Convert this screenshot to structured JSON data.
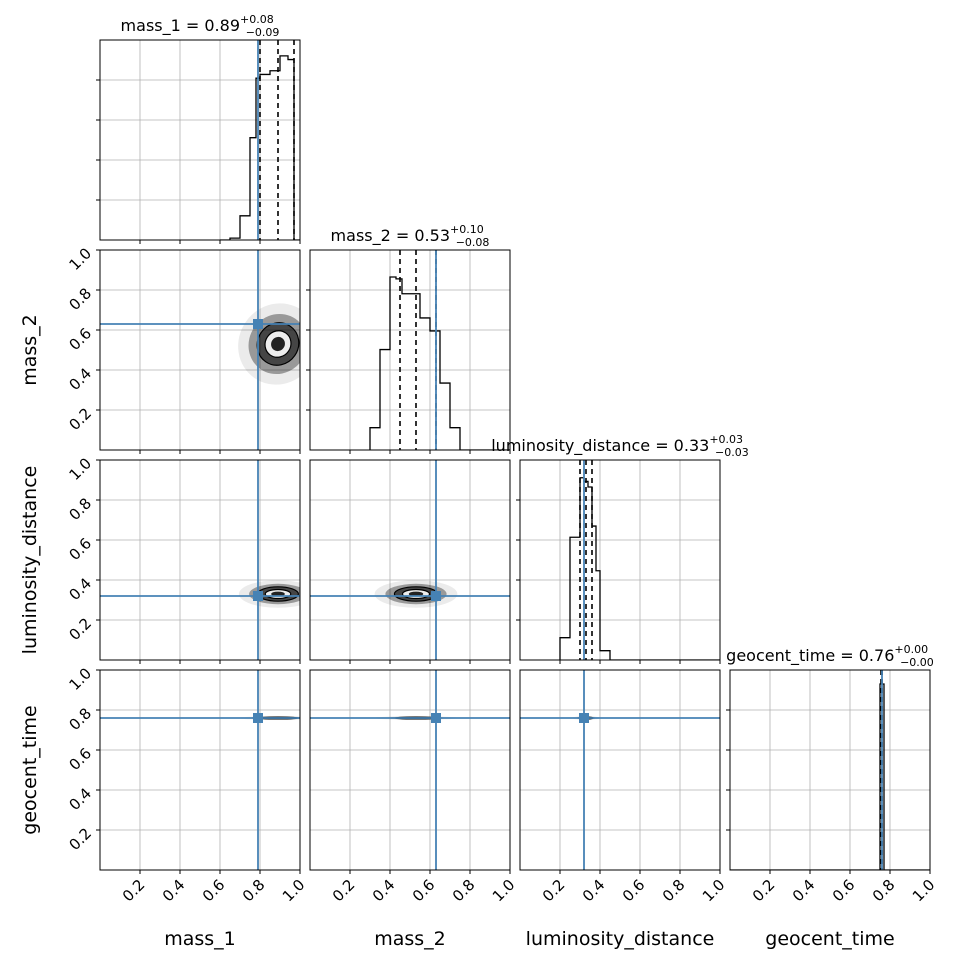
{
  "chart_data": {
    "type": "corner",
    "parameters": [
      "mass_1",
      "mass_2",
      "luminosity_distance",
      "geocent_time"
    ],
    "axis_labels": [
      "mass_1",
      "mass_2",
      "luminosity_distance",
      "geocent_time"
    ],
    "titles": [
      {
        "name": "mass_1 = 0.89",
        "sup": "+0.08",
        "sub": "−0.09"
      },
      {
        "name": "mass_2 = 0.53",
        "sup": "+0.10",
        "sub": "−0.08"
      },
      {
        "name": "luminosity_distance = 0.33",
        "sup": "+0.03",
        "sub": "−0.03"
      },
      {
        "name": "geocent_time = 0.76",
        "sup": "+0.00",
        "sub": "−0.00"
      }
    ],
    "axis_range": [
      0,
      1
    ],
    "ticks": [
      0.2,
      0.4,
      0.6,
      0.8,
      1.0
    ],
    "tick_labels": [
      "0.2",
      "0.4",
      "0.6",
      "0.8",
      "1.0"
    ],
    "truths": [
      0.79,
      0.63,
      0.32,
      0.76
    ],
    "quantiles": [
      [
        0.8,
        0.89,
        0.97
      ],
      [
        0.45,
        0.53,
        0.63
      ],
      [
        0.3,
        0.33,
        0.36
      ],
      [
        0.755,
        0.76,
        0.76
      ]
    ],
    "histograms": [
      {
        "edges": [
          0.6,
          0.65,
          0.7,
          0.75,
          0.78,
          0.8,
          0.85,
          0.9,
          0.94,
          0.97,
          1.0
        ],
        "counts": [
          0.0,
          0.01,
          0.13,
          0.55,
          0.87,
          0.89,
          0.91,
          0.99,
          0.97,
          0.0
        ]
      },
      {
        "edges": [
          0.3,
          0.35,
          0.4,
          0.43,
          0.46,
          0.5,
          0.55,
          0.6,
          0.65,
          0.7,
          0.75,
          0.8
        ],
        "counts": [
          0.12,
          0.54,
          0.93,
          0.92,
          0.84,
          0.84,
          0.71,
          0.64,
          0.36,
          0.12,
          0.0
        ]
      },
      {
        "edges": [
          0.2,
          0.25,
          0.3,
          0.32,
          0.34,
          0.36,
          0.38,
          0.4,
          0.45
        ],
        "counts": [
          0.12,
          0.66,
          0.98,
          0.96,
          0.93,
          0.72,
          0.48,
          0.05
        ]
      },
      {
        "edges": [
          0.0,
          0.75,
          0.76,
          0.77,
          0.8
        ],
        "counts": [
          0.0,
          1.0,
          1.0,
          0.0
        ]
      }
    ],
    "grid": true,
    "colors": {
      "truth": "#4682b4",
      "hist": "#000000",
      "quantile": "#000000",
      "grid": "#b0b0b0"
    }
  }
}
